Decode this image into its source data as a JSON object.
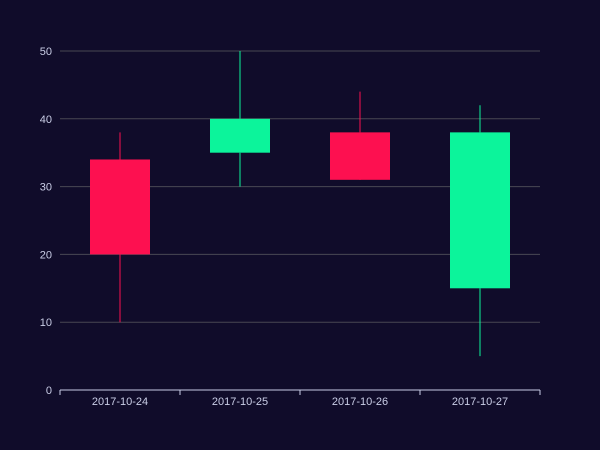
{
  "chart_data": {
    "type": "candlestick",
    "categories": [
      "2017-10-24",
      "2017-10-25",
      "2017-10-26",
      "2017-10-27"
    ],
    "series": [
      {
        "values": [
          {
            "open": 20,
            "close": 34,
            "low": 10,
            "high": 38
          },
          {
            "open": 40,
            "close": 35,
            "low": 30,
            "high": 50
          },
          {
            "open": 31,
            "close": 38,
            "low": 33,
            "high": 44
          },
          {
            "open": 38,
            "close": 15,
            "low": 5,
            "high": 42
          }
        ]
      }
    ],
    "y_ticks": [
      "0",
      "10",
      "20",
      "30",
      "40",
      "50"
    ],
    "ylim": [
      0,
      50
    ],
    "grid": true,
    "colors": {
      "background": "#100c2a",
      "up": "#fd1050",
      "down": "#0cf49b",
      "grid": "#484753",
      "axis": "#c9cde6",
      "text": "#c9cde6"
    }
  }
}
